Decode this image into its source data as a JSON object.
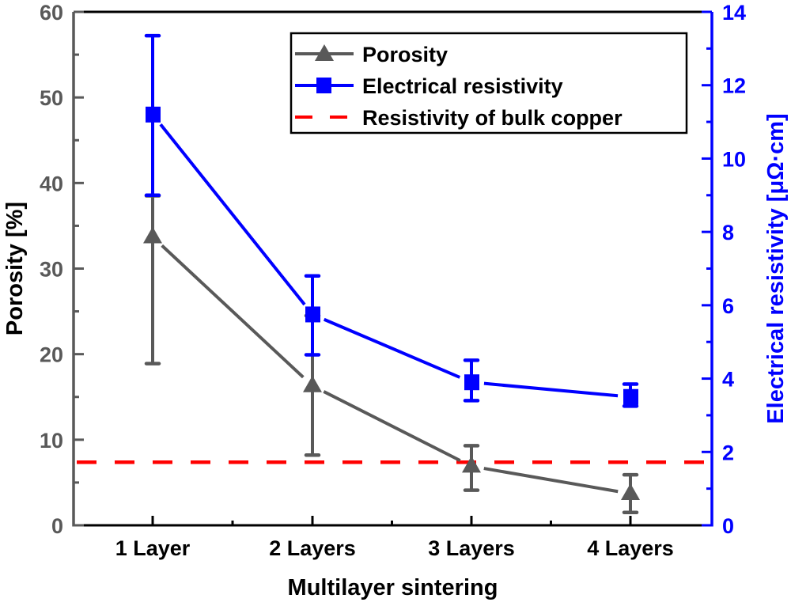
{
  "chart_data": {
    "type": "line",
    "title": "",
    "xlabel": "Multilayer sintering",
    "ylabel": "Porosity [%]",
    "ylabel_right": "Electrical resistivity [μΩ·cm]",
    "categories": [
      "1 Layer",
      "2 Layers",
      "3 Layers",
      "4 Layers"
    ],
    "ylim": [
      0,
      60
    ],
    "ylim_right": [
      0,
      14
    ],
    "yticks": [
      0,
      10,
      20,
      30,
      40,
      50,
      60
    ],
    "yticks_right": [
      0,
      2,
      4,
      6,
      8,
      10,
      12,
      14
    ],
    "grid": false,
    "legend_position": "upper right",
    "series": [
      {
        "name": "Porosity",
        "axis": "left",
        "color": "#595959",
        "marker": "triangle",
        "values": [
          33.7,
          16.3,
          6.9,
          3.7
        ],
        "err_low": [
          18.9,
          8.2,
          4.1,
          1.5
        ],
        "err_high": [
          38.5,
          24.5,
          9.3,
          5.9
        ]
      },
      {
        "name": "Electrical resistivity",
        "axis": "right",
        "color": "#0000ff",
        "marker": "square",
        "values": [
          11.2,
          5.75,
          3.9,
          3.5
        ],
        "err_low": [
          9.0,
          4.65,
          3.4,
          3.25
        ],
        "err_high": [
          13.35,
          6.8,
          4.5,
          3.85
        ]
      },
      {
        "name": "Resistivity of bulk copper",
        "axis": "right",
        "color": "#ff0000",
        "style": "dashed",
        "value": 1.72
      }
    ]
  },
  "legend": {
    "items": [
      "Porosity",
      "Electrical resistivity",
      "Resistivity of bulk copper"
    ]
  }
}
